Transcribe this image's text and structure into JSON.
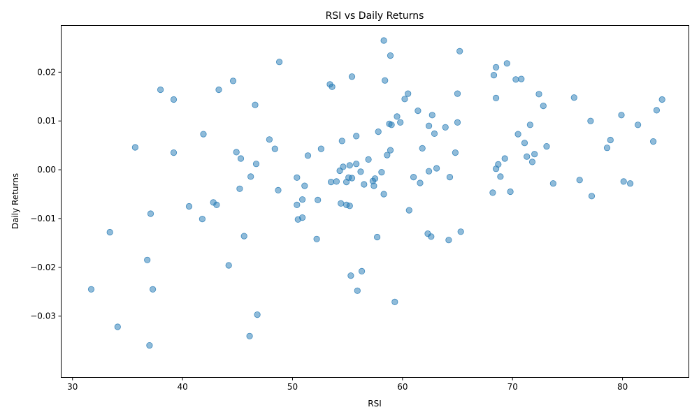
{
  "chart_data": {
    "type": "scatter",
    "title": "RSI vs Daily Returns",
    "xlabel": "RSI",
    "ylabel": "Daily Returns",
    "xlim": [
      29.0,
      86.0
    ],
    "ylim": [
      -0.0425,
      0.0295
    ],
    "xticks": [
      30,
      40,
      50,
      60,
      70,
      80
    ],
    "xtick_labels": [
      "30",
      "40",
      "50",
      "60",
      "70",
      "80"
    ],
    "yticks": [
      -0.03,
      -0.02,
      -0.01,
      0.0,
      0.01,
      0.02
    ],
    "ytick_labels": [
      "−0.03",
      "−0.02",
      "−0.01",
      "0.00",
      "0.01",
      "0.02"
    ],
    "grid": false,
    "marker_color": "#1f77b4",
    "marker_alpha": 0.5,
    "points": [
      [
        31.7,
        -0.0245
      ],
      [
        33.4,
        -0.0128
      ],
      [
        34.1,
        -0.0322
      ],
      [
        35.7,
        0.0046
      ],
      [
        36.8,
        -0.0185
      ],
      [
        37.0,
        -0.036
      ],
      [
        37.1,
        -0.009
      ],
      [
        37.3,
        -0.0245
      ],
      [
        38.0,
        0.0164
      ],
      [
        39.2,
        0.0144
      ],
      [
        39.2,
        0.0035
      ],
      [
        40.6,
        -0.0075
      ],
      [
        41.8,
        -0.0101
      ],
      [
        41.9,
        0.0073
      ],
      [
        42.8,
        -0.0067
      ],
      [
        43.1,
        -0.0072
      ],
      [
        43.3,
        0.0164
      ],
      [
        44.2,
        -0.0196
      ],
      [
        44.6,
        0.0182
      ],
      [
        44.9,
        0.0036
      ],
      [
        45.2,
        -0.0039
      ],
      [
        45.3,
        0.0023
      ],
      [
        45.6,
        -0.0136
      ],
      [
        46.1,
        -0.0341
      ],
      [
        46.2,
        -0.0014
      ],
      [
        46.6,
        0.0133
      ],
      [
        46.7,
        0.0012
      ],
      [
        46.8,
        -0.0297
      ],
      [
        47.9,
        0.0062
      ],
      [
        48.4,
        0.0043
      ],
      [
        48.7,
        -0.0042
      ],
      [
        48.8,
        0.0221
      ],
      [
        50.4,
        -0.0072
      ],
      [
        50.4,
        -0.0016
      ],
      [
        50.5,
        -0.0102
      ],
      [
        50.9,
        -0.0098
      ],
      [
        50.9,
        -0.0061
      ],
      [
        51.1,
        -0.0033
      ],
      [
        51.4,
        0.0029
      ],
      [
        52.2,
        -0.0142
      ],
      [
        52.3,
        -0.0062
      ],
      [
        52.6,
        0.0043
      ],
      [
        53.4,
        0.0175
      ],
      [
        53.5,
        -0.0025
      ],
      [
        53.6,
        0.017
      ],
      [
        54.0,
        -0.0024
      ],
      [
        54.3,
        -0.0002
      ],
      [
        54.4,
        -0.0069
      ],
      [
        54.5,
        0.0059
      ],
      [
        54.6,
        0.0006
      ],
      [
        54.9,
        -0.0025
      ],
      [
        54.9,
        -0.0072
      ],
      [
        55.1,
        -0.0016
      ],
      [
        55.2,
        -0.0074
      ],
      [
        55.2,
        0.0009
      ],
      [
        55.3,
        -0.0217
      ],
      [
        55.4,
        0.0191
      ],
      [
        55.4,
        -0.0017
      ],
      [
        55.8,
        0.0069
      ],
      [
        55.9,
        -0.0248
      ],
      [
        55.8,
        0.0012
      ],
      [
        56.2,
        -0.0004
      ],
      [
        56.3,
        -0.0208
      ],
      [
        56.5,
        -0.003
      ],
      [
        56.9,
        0.0021
      ],
      [
        57.3,
        -0.0023
      ],
      [
        57.5,
        -0.0018
      ],
      [
        57.4,
        -0.0033
      ],
      [
        57.7,
        -0.0138
      ],
      [
        57.8,
        0.0078
      ],
      [
        58.1,
        -0.0005
      ],
      [
        58.3,
        0.0265
      ],
      [
        58.3,
        -0.005
      ],
      [
        58.4,
        0.0183
      ],
      [
        58.6,
        0.003
      ],
      [
        58.8,
        0.0094
      ],
      [
        58.9,
        0.004
      ],
      [
        58.9,
        0.0234
      ],
      [
        59.0,
        0.0092
      ],
      [
        59.3,
        -0.0271
      ],
      [
        59.5,
        0.0109
      ],
      [
        59.8,
        0.0097
      ],
      [
        60.2,
        0.0145
      ],
      [
        60.5,
        0.0156
      ],
      [
        60.6,
        -0.0083
      ],
      [
        61.0,
        -0.0015
      ],
      [
        61.4,
        0.0121
      ],
      [
        61.6,
        -0.0027
      ],
      [
        61.8,
        0.0044
      ],
      [
        62.3,
        -0.0131
      ],
      [
        62.4,
        -0.0003
      ],
      [
        62.4,
        0.009
      ],
      [
        62.6,
        -0.0137
      ],
      [
        62.7,
        0.0112
      ],
      [
        62.9,
        0.0074
      ],
      [
        63.1,
        0.0003
      ],
      [
        63.9,
        0.0087
      ],
      [
        64.2,
        -0.0144
      ],
      [
        64.3,
        -0.0015
      ],
      [
        64.8,
        0.0035
      ],
      [
        65.0,
        0.0156
      ],
      [
        65.0,
        0.0097
      ],
      [
        65.2,
        0.0243
      ],
      [
        65.3,
        -0.0127
      ],
      [
        68.2,
        -0.0047
      ],
      [
        68.3,
        0.0194
      ],
      [
        68.5,
        0.021
      ],
      [
        68.5,
        0.0147
      ],
      [
        68.5,
        0.0002
      ],
      [
        68.7,
        0.0011
      ],
      [
        68.9,
        -0.0014
      ],
      [
        69.3,
        0.0023
      ],
      [
        69.5,
        0.0218
      ],
      [
        69.8,
        -0.0045
      ],
      [
        70.3,
        0.0185
      ],
      [
        70.5,
        0.0073
      ],
      [
        70.8,
        0.0186
      ],
      [
        71.1,
        0.0055
      ],
      [
        71.3,
        0.0027
      ],
      [
        71.6,
        0.0092
      ],
      [
        71.8,
        0.0016
      ],
      [
        72.0,
        0.0032
      ],
      [
        72.4,
        0.0155
      ],
      [
        72.8,
        0.0131
      ],
      [
        73.1,
        0.0048
      ],
      [
        73.7,
        -0.0028
      ],
      [
        75.6,
        0.0148
      ],
      [
        76.1,
        -0.0021
      ],
      [
        77.1,
        0.01
      ],
      [
        77.2,
        -0.0054
      ],
      [
        78.6,
        0.0045
      ],
      [
        78.9,
        0.0061
      ],
      [
        79.9,
        0.0112
      ],
      [
        80.1,
        -0.0024
      ],
      [
        80.7,
        -0.0028
      ],
      [
        81.4,
        0.0092
      ],
      [
        82.8,
        0.0058
      ],
      [
        83.1,
        0.0122
      ],
      [
        83.6,
        0.0144
      ]
    ]
  }
}
